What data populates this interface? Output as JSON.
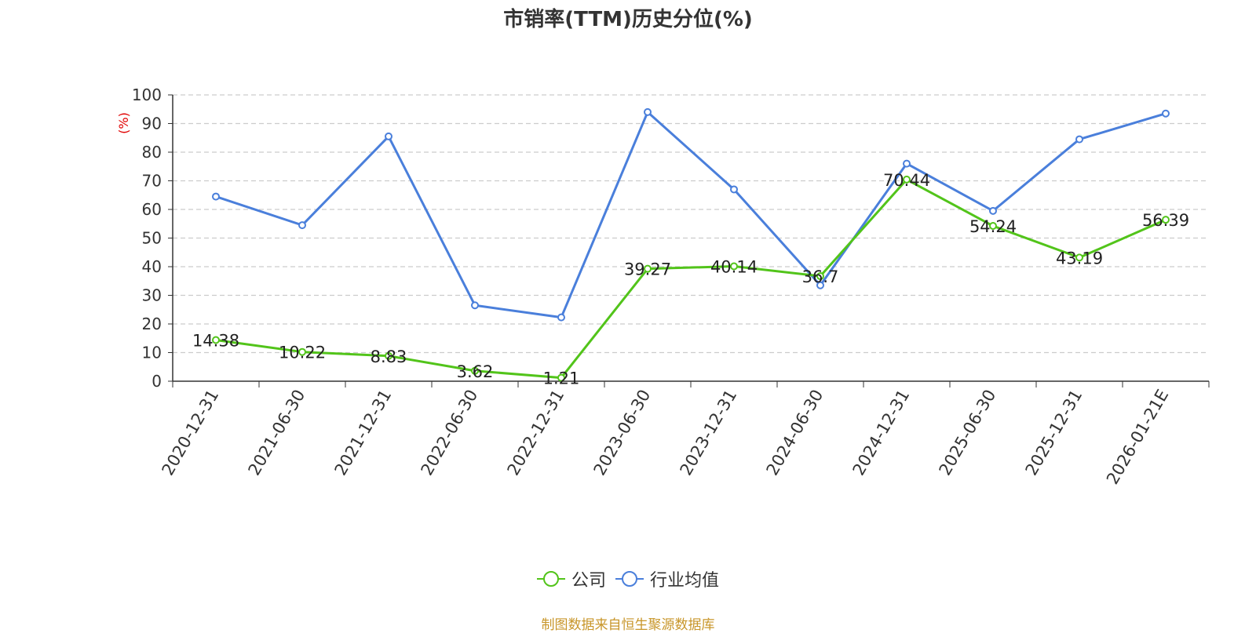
{
  "title": "市销率(TTM)历史分位(%)",
  "source": "制图数据来自恒生聚源数据库",
  "chart_data": {
    "type": "line",
    "title": "市销率(TTM)历史分位(%)",
    "ylabel": "(%)",
    "ylim": [
      0,
      100
    ],
    "yticks": [
      0,
      10,
      20,
      30,
      40,
      50,
      60,
      70,
      80,
      90,
      100
    ],
    "grid": true,
    "legend_position": "bottom",
    "categories": [
      "2020-12-31",
      "2021-06-30",
      "2021-12-31",
      "2022-06-30",
      "2022-12-31",
      "2023-06-30",
      "2023-12-31",
      "2024-06-30",
      "2024-12-31",
      "2025-06-30",
      "2025-12-31",
      "2026-01-21E"
    ],
    "series": [
      {
        "name": "公司",
        "color": "#52c41a",
        "values": [
          14.38,
          10.22,
          8.83,
          3.62,
          1.21,
          39.27,
          40.14,
          36.7,
          70.44,
          54.24,
          43.19,
          56.39
        ],
        "labels": [
          "14.38",
          "10.22",
          "8.83",
          "3.62",
          "1.21",
          "39.27",
          "40.14",
          "36.7",
          "70.44",
          "54.24",
          "43.19",
          "56.39"
        ]
      },
      {
        "name": "行业均值",
        "color": "#4a7fdb",
        "values": [
          64.5,
          54.5,
          85.5,
          26.5,
          22.3,
          94.0,
          67.0,
          33.5,
          76.0,
          59.5,
          84.5,
          93.5
        ]
      }
    ]
  }
}
